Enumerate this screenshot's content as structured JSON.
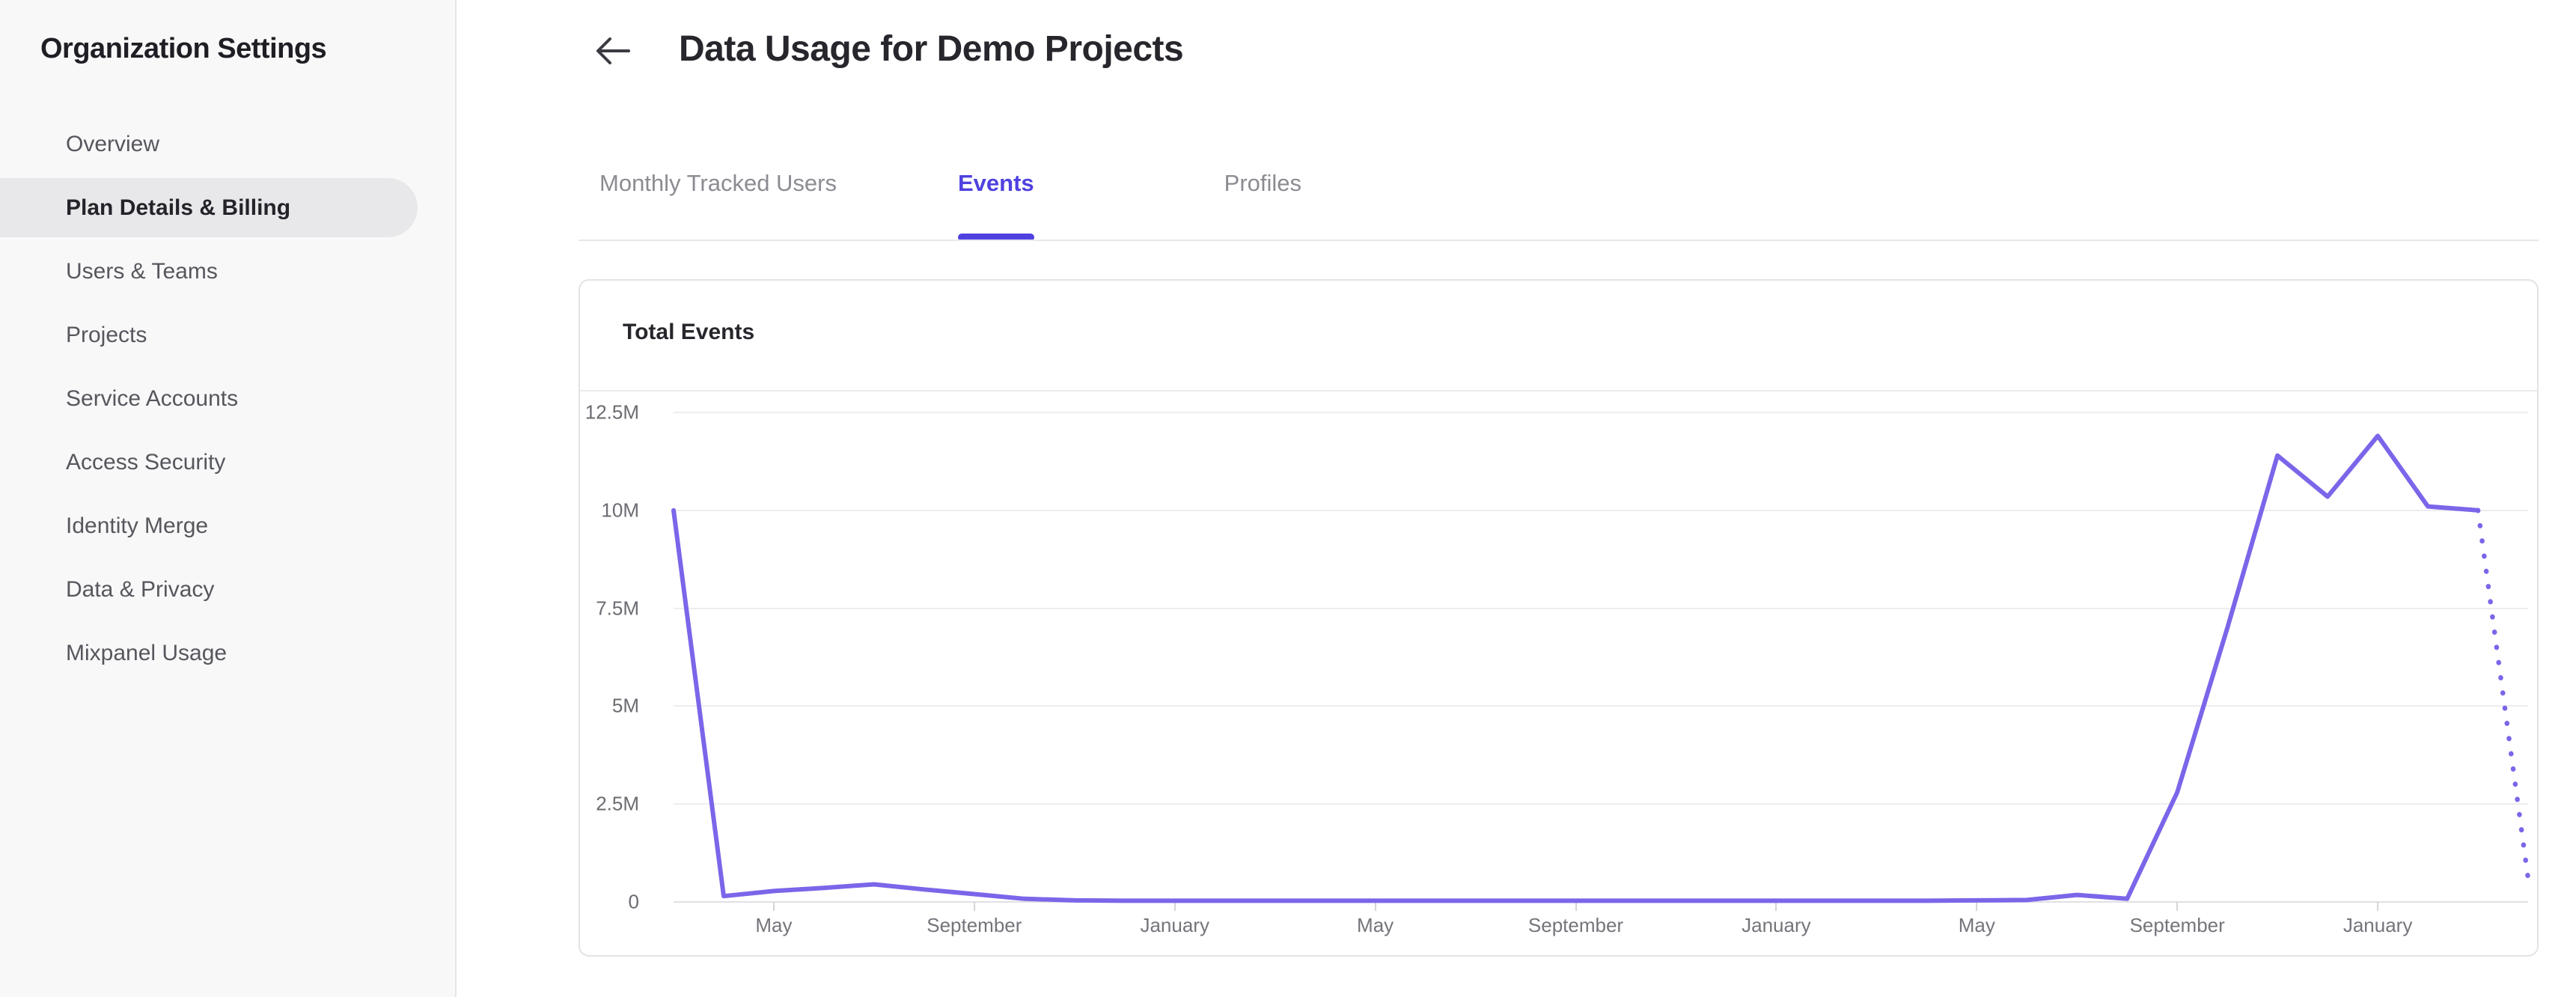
{
  "sidebar": {
    "title": "Organization Settings",
    "items": [
      {
        "label": "Overview",
        "active": false
      },
      {
        "label": "Plan Details & Billing",
        "active": true
      },
      {
        "label": "Users & Teams",
        "active": false
      },
      {
        "label": "Projects",
        "active": false
      },
      {
        "label": "Service Accounts",
        "active": false
      },
      {
        "label": "Access Security",
        "active": false
      },
      {
        "label": "Identity Merge",
        "active": false
      },
      {
        "label": "Data & Privacy",
        "active": false
      },
      {
        "label": "Mixpanel Usage",
        "active": false
      }
    ]
  },
  "header": {
    "title": "Data Usage for Demo Projects",
    "back_icon": "arrow-left-icon"
  },
  "tabs": {
    "items": [
      {
        "label": "Monthly Tracked Users",
        "active": false
      },
      {
        "label": "Events",
        "active": true
      },
      {
        "label": "Profiles",
        "active": false
      }
    ]
  },
  "usage_card": {
    "title": "Total Events"
  },
  "colors": {
    "accent_tab": "#4f41e0",
    "chart_line": "#7a66e9",
    "sidebar_bg": "#f8f8f9",
    "selected_pill": "#e8e8ea",
    "gridline": "#ededef"
  },
  "chart_data": {
    "type": "line",
    "title": "Total Events",
    "xlabel": "",
    "ylabel": "",
    "unit": "events",
    "grid": true,
    "legend": "none",
    "ylim_millions": [
      0,
      12.5
    ],
    "y_tick_labels": [
      "12.5M",
      "10M",
      "7.5M",
      "5M",
      "2.5M",
      "0"
    ],
    "x_tick_labels": [
      "May",
      "September",
      "January",
      "May",
      "September",
      "January",
      "May",
      "September",
      "January"
    ],
    "x_tick_indices": [
      2,
      6,
      10,
      14,
      18,
      22,
      26,
      30,
      34
    ],
    "series": [
      {
        "name": "Total Events",
        "color": "#7a66e9",
        "style": "solid",
        "values_millions": [
          10.0,
          0.15,
          0.28,
          0.36,
          0.45,
          0.32,
          0.2,
          0.08,
          0.04,
          0.03,
          0.03,
          0.03,
          0.03,
          0.03,
          0.03,
          0.03,
          0.03,
          0.03,
          0.03,
          0.03,
          0.03,
          0.03,
          0.03,
          0.03,
          0.03,
          0.03,
          0.04,
          0.05,
          0.18,
          0.08,
          2.8,
          7.0,
          11.4,
          10.35,
          11.9,
          10.1,
          10.0,
          0.6
        ],
        "projection_start_index": 36,
        "projection_style": "dotted"
      }
    ]
  }
}
